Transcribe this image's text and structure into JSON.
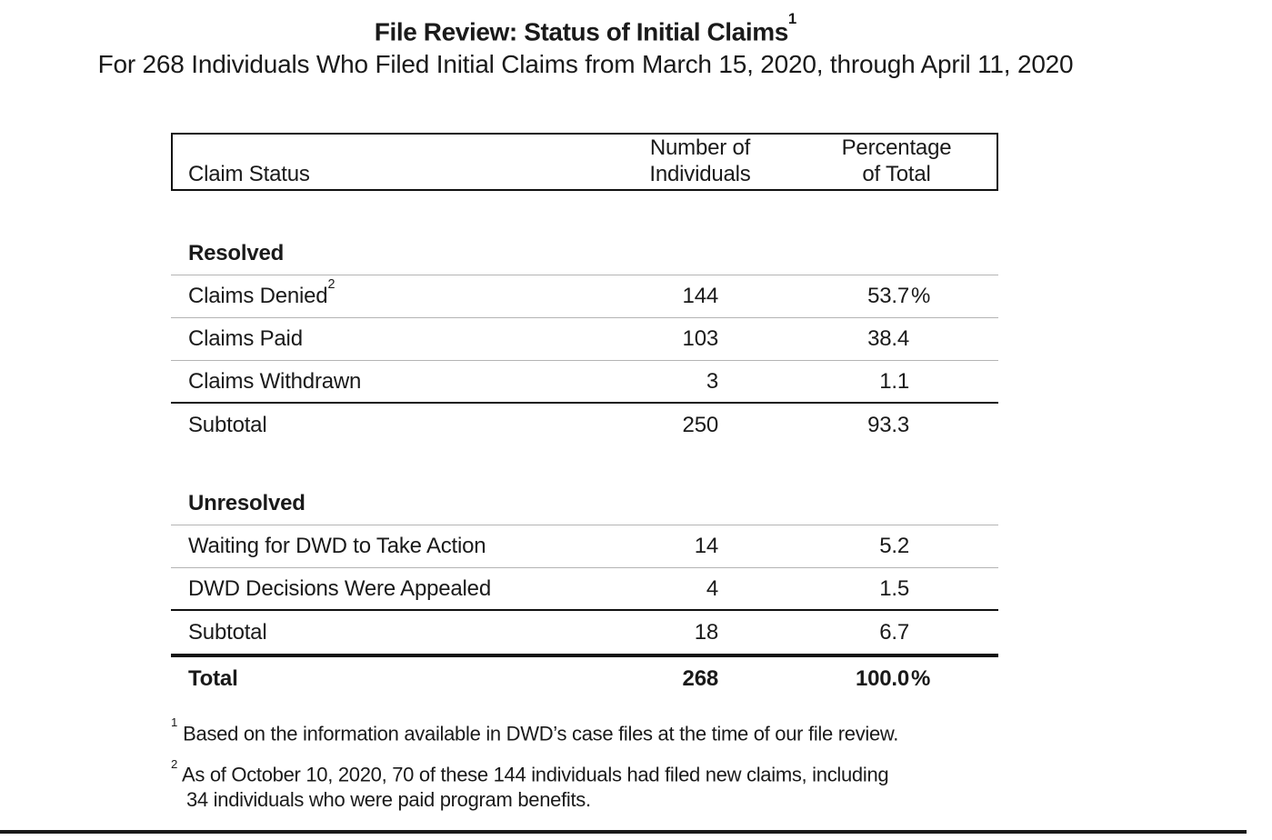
{
  "page": {
    "title": "File Review: Status of Initial Claims",
    "title_superscript": "1",
    "subtitle": "For 268 Individuals Who Filed Initial Claims from March 15, 2020, through April 11, 2020"
  },
  "colors": {
    "text": "#1a1a1a",
    "separator_gray": "#b4b4b4",
    "rule_black": "#111111"
  },
  "table": {
    "columns": {
      "claim_status": "Claim Status",
      "number_line1": "Number of",
      "number_line2": "Individuals",
      "pct_line1": "Percentage",
      "pct_line2": "of Total"
    },
    "sections": [
      {
        "heading": "Resolved",
        "rows": [
          {
            "label": "Claims Denied",
            "label_superscript": "2",
            "count": "144",
            "pct": "53.7",
            "pct_suffix": "%"
          },
          {
            "label": "Claims Paid",
            "count": "103",
            "pct": "38.4",
            "pct_suffix": ""
          },
          {
            "label": "Claims Withdrawn",
            "count": "3",
            "pct": "1.1",
            "pct_suffix": ""
          }
        ],
        "subtotal": {
          "label": "Subtotal",
          "count": "250",
          "pct": "93.3",
          "pct_suffix": ""
        }
      },
      {
        "heading": "Unresolved",
        "rows": [
          {
            "label": "Waiting for DWD to Take Action",
            "count": "14",
            "pct": "5.2",
            "pct_suffix": ""
          },
          {
            "label": "DWD Decisions Were Appealed",
            "count": "4",
            "pct": "1.5",
            "pct_suffix": ""
          }
        ],
        "subtotal": {
          "label": "Subtotal",
          "count": "18",
          "pct": "6.7",
          "pct_suffix": ""
        }
      }
    ],
    "total": {
      "label": "Total",
      "count": "268",
      "pct": "100.0",
      "pct_suffix": "%"
    }
  },
  "footnotes": [
    {
      "marker": "1",
      "line1": "Based on the information available in DWD’s case files at the time of our file review.",
      "line2": ""
    },
    {
      "marker": "2",
      "line1": "As of October 10, 2020, 70 of these 144 individuals had filed new claims, including",
      "line2": "34 individuals who were paid program benefits."
    }
  ]
}
